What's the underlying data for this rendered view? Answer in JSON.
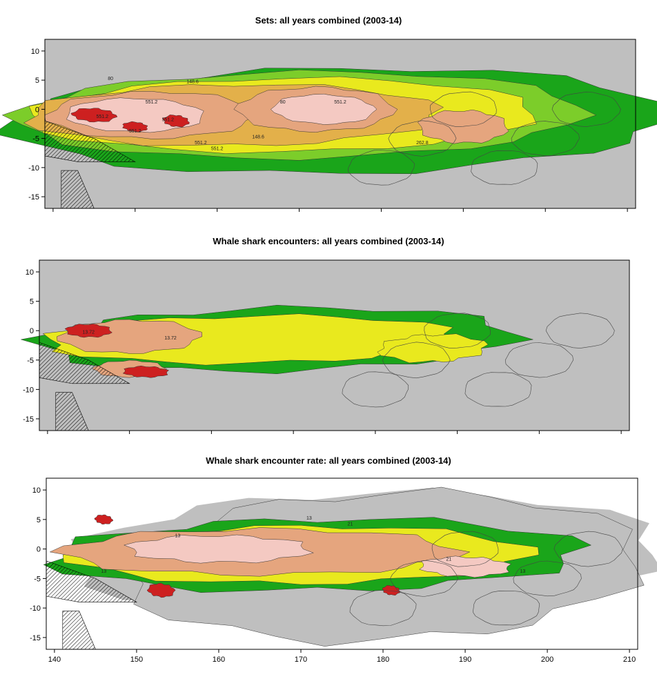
{
  "chart_data": [
    {
      "type": "heatmap",
      "title": "Sets: all years combined (2003-14)",
      "xlim": [
        139,
        211
      ],
      "ylim": [
        -17,
        12
      ],
      "yticks": [
        "10",
        "5",
        "0",
        "-5",
        "-10",
        "-15"
      ],
      "xticks": [],
      "background": "#bfbfbf",
      "contour_labels": [
        "80",
        "148.6",
        "551.2",
        "551.2",
        "551.2",
        "551.2",
        "551.2",
        "551.2",
        "80",
        "551.2",
        "148.6",
        "262.8"
      ],
      "levels": [
        {
          "name": "low",
          "color": "#1aa51a"
        },
        {
          "name": "low-mid",
          "color": "#7ccd2a"
        },
        {
          "name": "mid",
          "color": "#e9e91e"
        },
        {
          "name": "mid-high",
          "color": "#e3b04a"
        },
        {
          "name": "high",
          "color": "#e5a57e"
        },
        {
          "name": "very-high",
          "color": "#f4c9c2"
        },
        {
          "name": "max",
          "color": "#cd2020"
        }
      ]
    },
    {
      "type": "heatmap",
      "title": "Whale shark encounters: all years combined (2003-14)",
      "xlim": [
        139,
        211
      ],
      "ylim": [
        -17,
        12
      ],
      "yticks": [
        "10",
        "5",
        "0",
        "-5",
        "-10",
        "-15"
      ],
      "xticks": [],
      "background": "#bfbfbf",
      "contour_labels": [
        "13.72",
        "13.72"
      ],
      "levels": [
        {
          "name": "low",
          "color": "#1aa51a"
        },
        {
          "name": "mid",
          "color": "#e9e91e"
        },
        {
          "name": "high",
          "color": "#e5a57e"
        },
        {
          "name": "max",
          "color": "#cd2020"
        }
      ]
    },
    {
      "type": "heatmap",
      "title": "Whale shark encounter rate: all years combined (2003-14)",
      "xlim": [
        139,
        211
      ],
      "ylim": [
        -17,
        12
      ],
      "yticks": [
        "10",
        "5",
        "0",
        "-5",
        "-10",
        "-15"
      ],
      "xticks": [
        "140",
        "150",
        "160",
        "170",
        "180",
        "190",
        "200",
        "210"
      ],
      "background": "#ffffff",
      "contour_labels": [
        "13",
        "13",
        "21",
        "13",
        "21",
        "13"
      ],
      "levels": [
        {
          "name": "none",
          "color": "#bfbfbf"
        },
        {
          "name": "low",
          "color": "#1aa51a"
        },
        {
          "name": "mid",
          "color": "#e9e91e"
        },
        {
          "name": "high",
          "color": "#e5a57e"
        },
        {
          "name": "very-high",
          "color": "#f4c9c2"
        },
        {
          "name": "max",
          "color": "#cd2020"
        }
      ]
    }
  ]
}
